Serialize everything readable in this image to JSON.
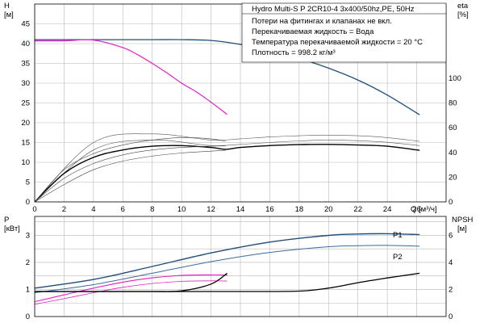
{
  "colors": {
    "head_curve": "#1f4e79",
    "head_max_speed": "#e020c8",
    "efficiency": "#000000",
    "power_p1": "#1f4e79",
    "power_p2": "#3b6a9a",
    "power_max_speed": "#e020c8",
    "npsh": "#000000",
    "grid": "#b8b8b8"
  },
  "chart_data": [
    {
      "type": "line",
      "id": "head_eta",
      "title": "",
      "ylabel_left": "H",
      "ylabel_left_unit": "[м]",
      "ylabel_right": "eta",
      "ylabel_right_unit": "[%]",
      "xlabel": "Q",
      "xlabel_unit": "[м³/ч]",
      "xlim": [
        0,
        28
      ],
      "ylim_left": [
        0,
        50
      ],
      "ylim_right": [
        0,
        160
      ],
      "x_ticks": [
        0,
        2,
        4,
        6,
        8,
        10,
        12,
        14,
        16,
        18,
        20,
        22,
        24,
        26
      ],
      "y_ticks_left": [
        0,
        5,
        10,
        15,
        20,
        25,
        30,
        35,
        40,
        45
      ],
      "y_ticks_right": [
        0,
        20,
        40,
        60,
        80,
        100
      ],
      "legend": {
        "title": "Hydro Multi-S P 2CR10-4 3x400/50hz,PE, 50Hz",
        "lines": [
          "Потери на фитингах и клапанах не вкл.",
          "Перекачиваемая жидкость = Вода",
          "Температура перекачиваемой жидкости = 20 °C",
          "Плотность = 998.2 кг/м³"
        ]
      },
      "series": [
        {
          "role": "head_curve",
          "axis": "left",
          "x": [
            0,
            4,
            8,
            10,
            12,
            14,
            16,
            18,
            20,
            22,
            24,
            26.2
          ],
          "y": [
            41,
            41,
            41,
            41,
            40.8,
            39.8,
            38.3,
            36.3,
            33.8,
            30.8,
            27,
            22
          ]
        },
        {
          "role": "head_max_speed",
          "axis": "left",
          "x": [
            0,
            2,
            4,
            6,
            7,
            8,
            9,
            10,
            11,
            12,
            13.1
          ],
          "y": [
            40.7,
            40.7,
            40.9,
            39,
            37.2,
            35,
            32.6,
            30,
            27.8,
            25.2,
            22.1
          ]
        },
        {
          "role": "efficiency_band_upper",
          "axis": "right",
          "x": [
            0,
            4,
            8,
            12,
            14,
            16,
            18,
            20,
            22,
            24,
            26.2
          ],
          "y": [
            0,
            48,
            55,
            50,
            51,
            52.5,
            53.5,
            54,
            53.5,
            52,
            49
          ]
        },
        {
          "role": "efficiency_band_lower",
          "axis": "right",
          "x": [
            0,
            4,
            8,
            12,
            14,
            16,
            18,
            20,
            22,
            24,
            26.2
          ],
          "y": [
            0,
            42,
            50,
            45.5,
            46.5,
            48,
            49.3,
            50,
            49.5,
            48.2,
            45.5
          ]
        },
        {
          "role": "efficiency",
          "axis": "right",
          "x": [
            0,
            2,
            4,
            6,
            8,
            10,
            12,
            13,
            14,
            16,
            18,
            20,
            22,
            24,
            26.2
          ],
          "y": [
            0,
            23,
            36,
            42,
            45,
            45.5,
            44,
            42.5,
            44,
            45.5,
            46.3,
            46.5,
            46,
            45,
            41.7
          ]
        },
        {
          "role": "efficiency_thin_1",
          "axis": "right",
          "x": [
            0,
            2,
            4,
            6,
            8,
            10,
            12,
            13
          ],
          "y": [
            0,
            14,
            26,
            33,
            37,
            39.5,
            41,
            41.7
          ]
        },
        {
          "role": "efficiency_thin_2",
          "axis": "right",
          "x": [
            0,
            2,
            4,
            6,
            8,
            10,
            12,
            13
          ],
          "y": [
            0,
            19,
            31,
            38,
            42,
            44,
            45,
            45.3
          ]
        },
        {
          "role": "efficiency_thin_3",
          "axis": "right",
          "x": [
            0,
            2,
            4,
            6,
            8,
            10,
            12,
            13
          ],
          "y": [
            0,
            26,
            39,
            46,
            50,
            52,
            51,
            49
          ]
        }
      ]
    },
    {
      "type": "line",
      "id": "power_npsh",
      "title": "",
      "ylabel_left": "P",
      "ylabel_left_unit": "[кВт]",
      "ylabel_right": "NPSH",
      "ylabel_right_unit": "[м]",
      "xlim": [
        0,
        28
      ],
      "ylim_left": [
        0,
        3.7
      ],
      "ylim_right": [
        0,
        7.4
      ],
      "y_ticks_left": [
        0,
        1,
        2,
        3
      ],
      "y_ticks_right": [
        0,
        2,
        4,
        6
      ],
      "series": [
        {
          "role": "power_p1",
          "name": "P1",
          "axis": "left",
          "x": [
            0,
            4,
            8,
            12,
            16,
            20,
            22,
            24,
            26.2
          ],
          "y": [
            1.05,
            1.37,
            1.85,
            2.35,
            2.75,
            3.0,
            3.05,
            3.06,
            3.03
          ]
        },
        {
          "role": "power_p2",
          "name": "P2",
          "axis": "left",
          "x": [
            0,
            4,
            8,
            12,
            16,
            20,
            22,
            24,
            26.2
          ],
          "y": [
            0.88,
            1.18,
            1.6,
            2.03,
            2.37,
            2.58,
            2.62,
            2.63,
            2.6
          ]
        },
        {
          "role": "power_max_speed_p1",
          "axis": "left",
          "x": [
            0,
            2,
            4,
            6,
            8,
            10,
            12,
            13.1
          ],
          "y": [
            0.55,
            0.8,
            1.05,
            1.27,
            1.43,
            1.52,
            1.54,
            1.53
          ]
        },
        {
          "role": "power_max_speed_p2",
          "axis": "left",
          "x": [
            0,
            2,
            4,
            6,
            8,
            10,
            12,
            13.1
          ],
          "y": [
            0.45,
            0.66,
            0.88,
            1.08,
            1.22,
            1.3,
            1.32,
            1.31
          ]
        },
        {
          "role": "npsh",
          "axis": "right",
          "x": [
            0,
            4,
            8,
            10,
            12,
            13.1
          ],
          "y": [
            1.85,
            1.85,
            1.85,
            1.9,
            2.4,
            3.2
          ]
        },
        {
          "role": "npsh",
          "axis": "right",
          "x": [
            0,
            8,
            14,
            18,
            20,
            22,
            24,
            26.2
          ],
          "y": [
            1.85,
            1.85,
            1.85,
            1.88,
            2.1,
            2.5,
            2.85,
            3.2
          ]
        }
      ]
    }
  ]
}
